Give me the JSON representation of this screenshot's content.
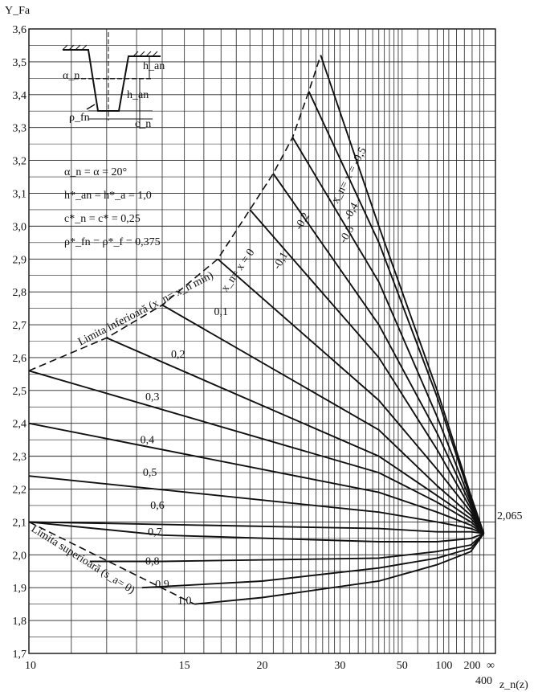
{
  "chart_data": {
    "type": "line",
    "title": "",
    "ylabel": "Y_Fa",
    "xlabel": "z_n(z)",
    "x_scale": "reciprocal",
    "ylim": [
      1.7,
      3.6
    ],
    "y_ticks": [
      "1,7",
      "1,8",
      "1,9",
      "2,0",
      "2,1",
      "2,2",
      "2,3",
      "2,4",
      "2,5",
      "2,6",
      "2,7",
      "2,8",
      "2,9",
      "3,0",
      "3,1",
      "3,2",
      "3,3",
      "3,4",
      "3,5",
      "3,6"
    ],
    "x_ticks": [
      "10",
      "15",
      "20",
      "30",
      "50",
      "100",
      "200",
      "400",
      "∞"
    ],
    "grid": true,
    "convergence_value": "2,065",
    "parameters": [
      "α_n = α = 20°",
      "h*_an = h*_a = 1,0",
      "c*_n = c* = 0,25",
      "ρ*_fn = ρ*_f = 0,375"
    ],
    "inset_labels": [
      "α_n",
      "h_an",
      "h_an",
      "ρ_fn",
      "c_n"
    ],
    "boundaries": {
      "lower": {
        "name": "Limita inferioară (x_n= x_n min)",
        "points": [
          [
            10,
            2.56
          ],
          [
            12,
            2.66
          ],
          [
            14,
            2.76
          ],
          [
            16.8,
            2.9
          ],
          [
            19,
            3.05
          ],
          [
            21,
            3.16
          ],
          [
            23,
            3.27
          ],
          [
            25,
            3.41
          ],
          [
            26.7,
            3.52
          ]
        ]
      },
      "upper": {
        "name": "Limita superioară (s_a= 0)",
        "points": [
          [
            10,
            2.1
          ],
          [
            15.5,
            1.85
          ]
        ]
      }
    },
    "series": [
      {
        "name": "x_n= x = -0,5",
        "label_pos": [
          32.5,
          3.15
        ],
        "points": [
          [
            26.7,
            3.52
          ],
          [
            40,
            3.0
          ],
          [
            80,
            2.5
          ],
          [
            190,
            2.18
          ],
          [
            400,
            2.065
          ]
        ]
      },
      {
        "name": "-0,4",
        "label_pos": [
          33,
          3.04
        ],
        "points": [
          [
            25,
            3.41
          ],
          [
            40,
            2.95
          ],
          [
            80,
            2.48
          ],
          [
            190,
            2.17
          ],
          [
            400,
            2.065
          ]
        ]
      },
      {
        "name": "-0,3",
        "label_pos": [
          32,
          2.97
        ],
        "points": [
          [
            23,
            3.27
          ],
          [
            40,
            2.83
          ],
          [
            80,
            2.42
          ],
          [
            190,
            2.16
          ],
          [
            400,
            2.065
          ]
        ]
      },
      {
        "name": "-0,2",
        "label_pos": [
          24.5,
          3.01
        ],
        "points": [
          [
            21,
            3.16
          ],
          [
            40,
            2.7
          ],
          [
            80,
            2.37
          ],
          [
            190,
            2.15
          ],
          [
            400,
            2.065
          ]
        ]
      },
      {
        "name": "-0,1",
        "label_pos": [
          22,
          2.89
        ],
        "points": [
          [
            19,
            3.05
          ],
          [
            40,
            2.6
          ],
          [
            80,
            2.32
          ],
          [
            190,
            2.14
          ],
          [
            400,
            2.065
          ]
        ]
      },
      {
        "name": "x_n= x = 0",
        "label_pos": [
          18.3,
          2.86
        ],
        "points": [
          [
            16.8,
            2.9
          ],
          [
            40,
            2.47
          ],
          [
            80,
            2.26
          ],
          [
            190,
            2.13
          ],
          [
            400,
            2.065
          ]
        ]
      },
      {
        "name": "0,1",
        "label_pos": [
          17,
          2.73
        ],
        "points": [
          [
            14,
            2.76
          ],
          [
            40,
            2.38
          ],
          [
            80,
            2.21
          ],
          [
            190,
            2.12
          ],
          [
            400,
            2.065
          ]
        ]
      },
      {
        "name": "0,2",
        "label_pos": [
          14.7,
          2.6
        ],
        "points": [
          [
            12,
            2.66
          ],
          [
            40,
            2.3
          ],
          [
            80,
            2.18
          ],
          [
            190,
            2.11
          ],
          [
            400,
            2.065
          ]
        ]
      },
      {
        "name": "0,3",
        "label_pos": [
          13.6,
          2.47
        ],
        "points": [
          [
            10,
            2.56
          ],
          [
            40,
            2.25
          ],
          [
            80,
            2.16
          ],
          [
            190,
            2.1
          ],
          [
            400,
            2.065
          ]
        ]
      },
      {
        "name": "0,4",
        "label_pos": [
          13.4,
          2.34
        ],
        "points": [
          [
            10,
            2.4
          ],
          [
            40,
            2.19
          ],
          [
            80,
            2.13
          ],
          [
            190,
            2.09
          ],
          [
            400,
            2.065
          ]
        ]
      },
      {
        "name": "0,5",
        "label_pos": [
          13.5,
          2.24
        ],
        "points": [
          [
            10,
            2.24
          ],
          [
            40,
            2.13
          ],
          [
            80,
            2.1
          ],
          [
            190,
            2.08
          ],
          [
            400,
            2.065
          ]
        ]
      },
      {
        "name": "0,6",
        "label_pos": [
          13.8,
          2.14
        ],
        "points": [
          [
            10,
            2.1
          ],
          [
            40,
            2.08
          ],
          [
            80,
            2.07
          ],
          [
            190,
            2.07
          ],
          [
            400,
            2.065
          ]
        ]
      },
      {
        "name": "0,7",
        "label_pos": [
          13.7,
          2.06
        ],
        "points": [
          [
            10,
            2.1
          ],
          [
            14,
            2.06
          ],
          [
            40,
            2.04
          ],
          [
            80,
            2.04
          ],
          [
            190,
            2.05
          ],
          [
            400,
            2.065
          ]
        ]
      },
      {
        "name": "0,8",
        "label_pos": [
          13.6,
          1.97
        ],
        "points": [
          [
            11.5,
            1.98
          ],
          [
            14,
            1.98
          ],
          [
            40,
            1.99
          ],
          [
            80,
            2.01
          ],
          [
            190,
            2.03
          ],
          [
            400,
            2.065
          ]
        ]
      },
      {
        "name": "0,9",
        "label_pos": [
          14,
          1.9
        ],
        "points": [
          [
            13.2,
            1.9
          ],
          [
            20,
            1.92
          ],
          [
            40,
            1.96
          ],
          [
            80,
            1.99
          ],
          [
            190,
            2.02
          ],
          [
            400,
            2.065
          ]
        ]
      },
      {
        "name": "1,0",
        "label_pos": [
          15,
          1.85
        ],
        "points": [
          [
            15.5,
            1.85
          ],
          [
            20,
            1.87
          ],
          [
            40,
            1.92
          ],
          [
            80,
            1.97
          ],
          [
            190,
            2.01
          ],
          [
            400,
            2.065
          ]
        ]
      }
    ]
  }
}
